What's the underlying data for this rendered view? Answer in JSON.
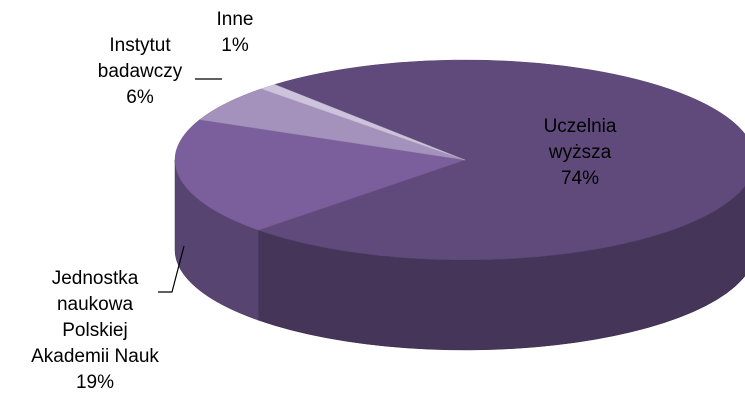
{
  "chart_data": {
    "type": "pie",
    "categories": [
      "Uczelnia wyższa",
      "Jednostka naukowa Polskiej Akademii Nauk",
      "Instytut badawczy",
      "Inne"
    ],
    "values": [
      74,
      19,
      6,
      1
    ],
    "value_labels": [
      "74%",
      "19%",
      "6%",
      "1%"
    ],
    "colors": [
      "#5f4a7b",
      "#7a5f9c",
      "#a492bd",
      "#cdc3dc"
    ]
  }
}
